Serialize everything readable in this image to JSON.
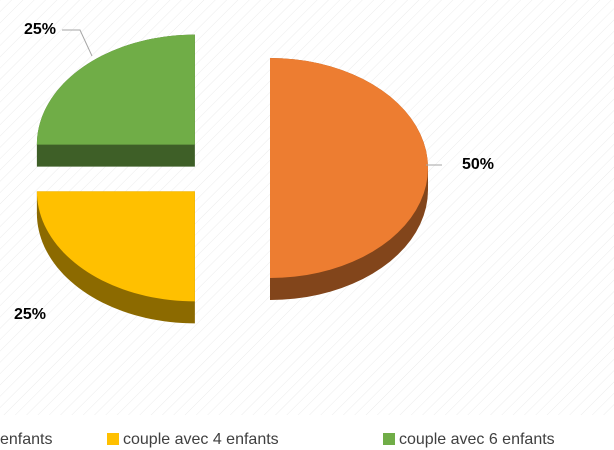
{
  "chart_data": {
    "type": "pie",
    "categories": [
      "enfants",
      "couple avec 4 enfants",
      "couple avec 6 enfants"
    ],
    "values": [
      50,
      25,
      25
    ],
    "value_labels": [
      "50%",
      "25%",
      "25%"
    ],
    "colors": [
      "#ED7D31",
      "#FFC000",
      "#70AD47"
    ]
  }
}
